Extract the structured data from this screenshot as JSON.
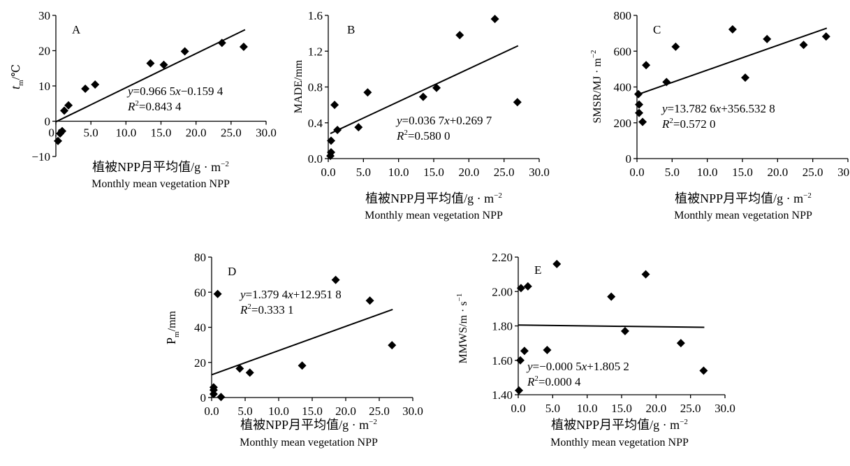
{
  "chart_data": [
    {
      "type": "scatter",
      "panel_label": "A",
      "ylabel": "t_m/℃",
      "ylabel_main": "t",
      "ylabel_sub": "m",
      "ylabel_tail": "/℃",
      "xlabel_cn": "植被NPP月平均值/g · m",
      "xlabel_cn_sup": "−2",
      "xlabel_en": "Monthly mean vegetation NPP",
      "xlim": [
        0,
        30
      ],
      "ylim": [
        -10,
        30
      ],
      "xticks": [
        0,
        5,
        10,
        15,
        20,
        25,
        30
      ],
      "xtick_labels": [
        "0.0",
        "5.0",
        "10.0",
        "15.0",
        "20.0",
        "25.0",
        "30.0"
      ],
      "yticks": [
        -10,
        0,
        10,
        20,
        30
      ],
      "ytick_labels": [
        "−10",
        "0",
        "10",
        "20",
        "30"
      ],
      "points": [
        [
          0.3,
          -5.6
        ],
        [
          0.6,
          -3.5
        ],
        [
          0.9,
          -2.8
        ],
        [
          1.2,
          3.0
        ],
        [
          1.8,
          4.5
        ],
        [
          4.2,
          9.2
        ],
        [
          5.6,
          10.4
        ],
        [
          13.5,
          16.4
        ],
        [
          15.4,
          16.0
        ],
        [
          18.4,
          19.8
        ],
        [
          23.7,
          22.2
        ],
        [
          26.8,
          21.1
        ]
      ],
      "fit": {
        "slope": 0.9665,
        "intercept": -0.1594,
        "x_range": [
          0,
          27
        ]
      },
      "equation_y": "y",
      "equation_rest": "=0.966 5",
      "equation_x": "x",
      "equation_tail": "−0.159 4",
      "r2_label": "R",
      "r2_value": "=0.843 4",
      "x_axis_at_zero": true
    },
    {
      "type": "scatter",
      "panel_label": "B",
      "ylabel": "MADE/mm",
      "ylabel_main": "MADE/mm",
      "xlabel_cn": "植被NPP月平均值/g · m",
      "xlabel_cn_sup": "−2",
      "xlabel_en": "Monthly mean vegetation NPP",
      "xlim": [
        0,
        30
      ],
      "ylim": [
        0,
        1.6
      ],
      "xticks": [
        0,
        5,
        10,
        15,
        20,
        25,
        30
      ],
      "xtick_labels": [
        "0.0",
        "5.0",
        "10.0",
        "15.0",
        "20.0",
        "25.0",
        "30.0"
      ],
      "yticks": [
        0,
        0.4,
        0.8,
        1.2,
        1.6
      ],
      "ytick_labels": [
        "0.0",
        "0.4",
        "0.8",
        "1.2",
        "1.6"
      ],
      "points": [
        [
          0.3,
          0.03
        ],
        [
          0.4,
          0.07
        ],
        [
          0.4,
          0.2
        ],
        [
          0.9,
          0.6
        ],
        [
          1.3,
          0.32
        ],
        [
          4.3,
          0.35
        ],
        [
          5.6,
          0.74
        ],
        [
          13.5,
          0.69
        ],
        [
          15.4,
          0.79
        ],
        [
          18.7,
          1.38
        ],
        [
          23.7,
          1.56
        ],
        [
          26.9,
          0.63
        ]
      ],
      "fit": {
        "slope": 0.0367,
        "intercept": 0.2697,
        "x_range": [
          0.3,
          27
        ]
      },
      "equation_y": "y",
      "equation_rest": "=0.036 7",
      "equation_x": "x",
      "equation_tail": "+0.269 7",
      "r2_label": "R",
      "r2_value": "=0.580 0",
      "x_axis_at_zero": false
    },
    {
      "type": "scatter",
      "panel_label": "C",
      "ylabel": "SMSR/MJ · m−2",
      "ylabel_main": "SMSR/MJ · m",
      "ylabel_sup": "−2",
      "xlabel_cn": "植被NPP月平均值/g · m",
      "xlabel_cn_sup": "−2",
      "xlabel_en": "Monthly mean vegetation NPP",
      "xlim": [
        0,
        30
      ],
      "ylim": [
        0,
        800
      ],
      "xticks": [
        0,
        5,
        10,
        15,
        20,
        25,
        30
      ],
      "xtick_labels": [
        "0.0",
        "5.0",
        "10.0",
        "15.0",
        "20.0",
        "25.0",
        "30.0"
      ],
      "yticks": [
        0,
        200,
        400,
        600,
        800
      ],
      "ytick_labels": [
        "0",
        "200",
        "400",
        "600",
        "800"
      ],
      "points": [
        [
          0.2,
          360
        ],
        [
          0.3,
          302
        ],
        [
          0.3,
          255
        ],
        [
          0.8,
          205
        ],
        [
          1.3,
          522
        ],
        [
          4.2,
          428
        ],
        [
          5.5,
          625
        ],
        [
          13.6,
          722
        ],
        [
          15.4,
          452
        ],
        [
          18.5,
          668
        ],
        [
          23.7,
          635
        ],
        [
          26.9,
          682
        ]
      ],
      "fit": {
        "slope": 13.7826,
        "intercept": 356.5328,
        "x_range": [
          0,
          27
        ]
      },
      "equation_y": "y",
      "equation_rest": "=13.782 6",
      "equation_x": "x",
      "equation_tail": "+356.532 8",
      "r2_label": "R",
      "r2_value": "=0.572 0",
      "x_axis_at_zero": false
    },
    {
      "type": "scatter",
      "panel_label": "D",
      "ylabel": "P_m/mm",
      "ylabel_main": "P",
      "ylabel_sub": "m",
      "ylabel_tail": "/mm",
      "xlabel_cn": "植被NPP月平均值/g · m",
      "xlabel_cn_sup": "−2",
      "xlabel_en": "Monthly mean vegetation NPP",
      "xlim": [
        0,
        30
      ],
      "ylim": [
        0,
        80
      ],
      "xticks": [
        0,
        5,
        10,
        15,
        20,
        25,
        30
      ],
      "xtick_labels": [
        "0.0",
        "5.0",
        "10.0",
        "15.0",
        "20.0",
        "25.0",
        "30.0"
      ],
      "yticks": [
        0,
        20,
        40,
        60,
        80
      ],
      "ytick_labels": [
        "0",
        "20",
        "40",
        "60",
        "80"
      ],
      "points": [
        [
          0.3,
          5.8
        ],
        [
          0.3,
          4.3
        ],
        [
          0.3,
          2.0
        ],
        [
          0.9,
          59.0
        ],
        [
          1.4,
          0.3
        ],
        [
          4.2,
          16.5
        ],
        [
          5.7,
          14.2
        ],
        [
          13.5,
          18.2
        ],
        [
          18.5,
          67.0
        ],
        [
          23.6,
          55.2
        ],
        [
          26.9,
          29.8
        ]
      ],
      "fit": {
        "slope": 1.3794,
        "intercept": 12.9518,
        "x_range": [
          0,
          27
        ]
      },
      "equation_y": "y",
      "equation_rest": "=1.379 4",
      "equation_x": "x",
      "equation_tail": "+12.951 8",
      "r2_label": "R",
      "r2_value": "=0.333 1",
      "x_axis_at_zero": false
    },
    {
      "type": "scatter",
      "panel_label": "E",
      "ylabel": "MMWS/m · s−1",
      "ylabel_main": "MMWS/m · s",
      "ylabel_sup": "−1",
      "xlabel_cn": "植被NPP月平均值/g · m",
      "xlabel_cn_sup": "−2",
      "xlabel_en": "Monthly mean vegetation NPP",
      "xlim": [
        0,
        30
      ],
      "ylim": [
        1.4,
        2.2
      ],
      "xticks": [
        0,
        5,
        10,
        15,
        20,
        25,
        30
      ],
      "xtick_labels": [
        "0.0",
        "5.0",
        "10.0",
        "15.0",
        "20.0",
        "25.0",
        "30.0"
      ],
      "yticks": [
        1.4,
        1.6,
        1.8,
        2.0,
        2.2
      ],
      "ytick_labels": [
        "1.40",
        "1.60",
        "1.80",
        "2.00",
        "2.20"
      ],
      "points": [
        [
          0.1,
          1.425
        ],
        [
          0.3,
          1.6
        ],
        [
          0.4,
          2.02
        ],
        [
          0.9,
          1.655
        ],
        [
          1.4,
          2.03
        ],
        [
          4.2,
          1.66
        ],
        [
          5.6,
          2.16
        ],
        [
          13.5,
          1.97
        ],
        [
          15.5,
          1.77
        ],
        [
          18.5,
          2.1
        ],
        [
          23.6,
          1.7
        ],
        [
          26.9,
          1.54
        ]
      ],
      "fit": {
        "slope": -0.0005,
        "intercept": 1.8052,
        "x_range": [
          0,
          27
        ]
      },
      "equation_y": "y",
      "equation_rest": "=−0.000 5",
      "equation_x": "x",
      "equation_tail": "+1.805 2",
      "r2_label": "R",
      "r2_value": "=0.000 4",
      "x_axis_at_zero": false
    }
  ]
}
